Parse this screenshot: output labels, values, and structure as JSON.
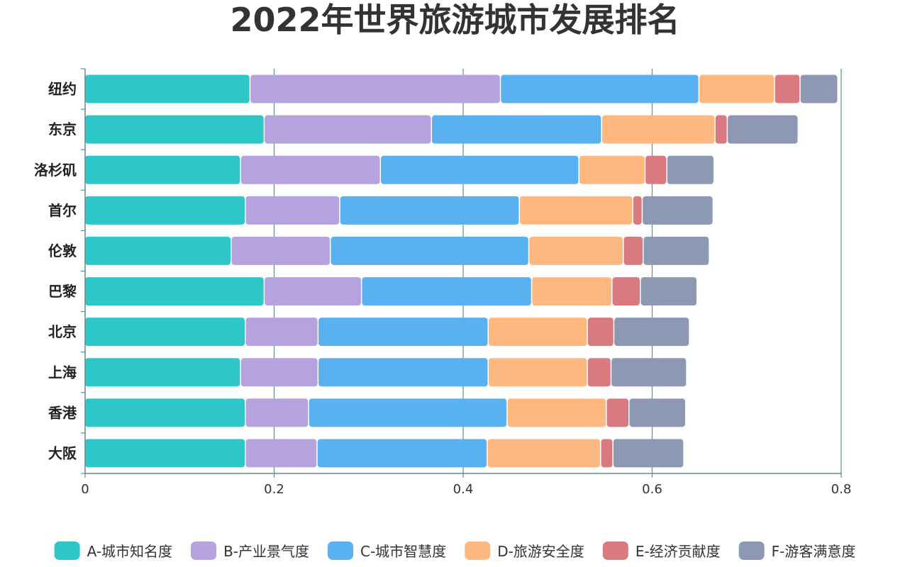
{
  "chart_data": {
    "type": "bar",
    "orientation": "horizontal",
    "stacked": true,
    "title": "2022年世界旅游城市发展排名",
    "categories": [
      "纽约",
      "东京",
      "洛杉矶",
      "首尔",
      "伦敦",
      "巴黎",
      "北京",
      "上海",
      "香港",
      "大阪"
    ],
    "series": [
      {
        "name": "A-城市知名度",
        "color": "#2ec7c9",
        "values": [
          0.175,
          0.19,
          0.165,
          0.17,
          0.155,
          0.19,
          0.17,
          0.165,
          0.17,
          0.17
        ]
      },
      {
        "name": "B-产业景气度",
        "color": "#b6a2de",
        "values": [
          0.265,
          0.177,
          0.148,
          0.1,
          0.105,
          0.103,
          0.077,
          0.082,
          0.067,
          0.076
        ]
      },
      {
        "name": "C-城市智慧度",
        "color": "#5ab1ef",
        "values": [
          0.21,
          0.18,
          0.21,
          0.19,
          0.21,
          0.18,
          0.18,
          0.18,
          0.21,
          0.18
        ]
      },
      {
        "name": "D-旅游安全度",
        "color": "#ffb980",
        "values": [
          0.08,
          0.12,
          0.07,
          0.12,
          0.1,
          0.085,
          0.105,
          0.105,
          0.105,
          0.12
        ]
      },
      {
        "name": "E-经济贡献度",
        "color": "#d87a80",
        "values": [
          0.027,
          0.013,
          0.023,
          0.01,
          0.021,
          0.03,
          0.028,
          0.025,
          0.024,
          0.013
        ]
      },
      {
        "name": "F-游客满意度",
        "color": "#8d98b3",
        "values": [
          0.04,
          0.075,
          0.05,
          0.075,
          0.07,
          0.06,
          0.08,
          0.08,
          0.06,
          0.075
        ]
      }
    ],
    "xlim": [
      0,
      0.8
    ],
    "xticks": [
      "0",
      "0.2",
      "0.4",
      "0.6",
      "0.8"
    ],
    "xtick_values": [
      0,
      0.2,
      0.4,
      0.6,
      0.8
    ],
    "grid": "vertical",
    "legend_position": "bottom",
    "axis_color": "#5f8c93"
  }
}
